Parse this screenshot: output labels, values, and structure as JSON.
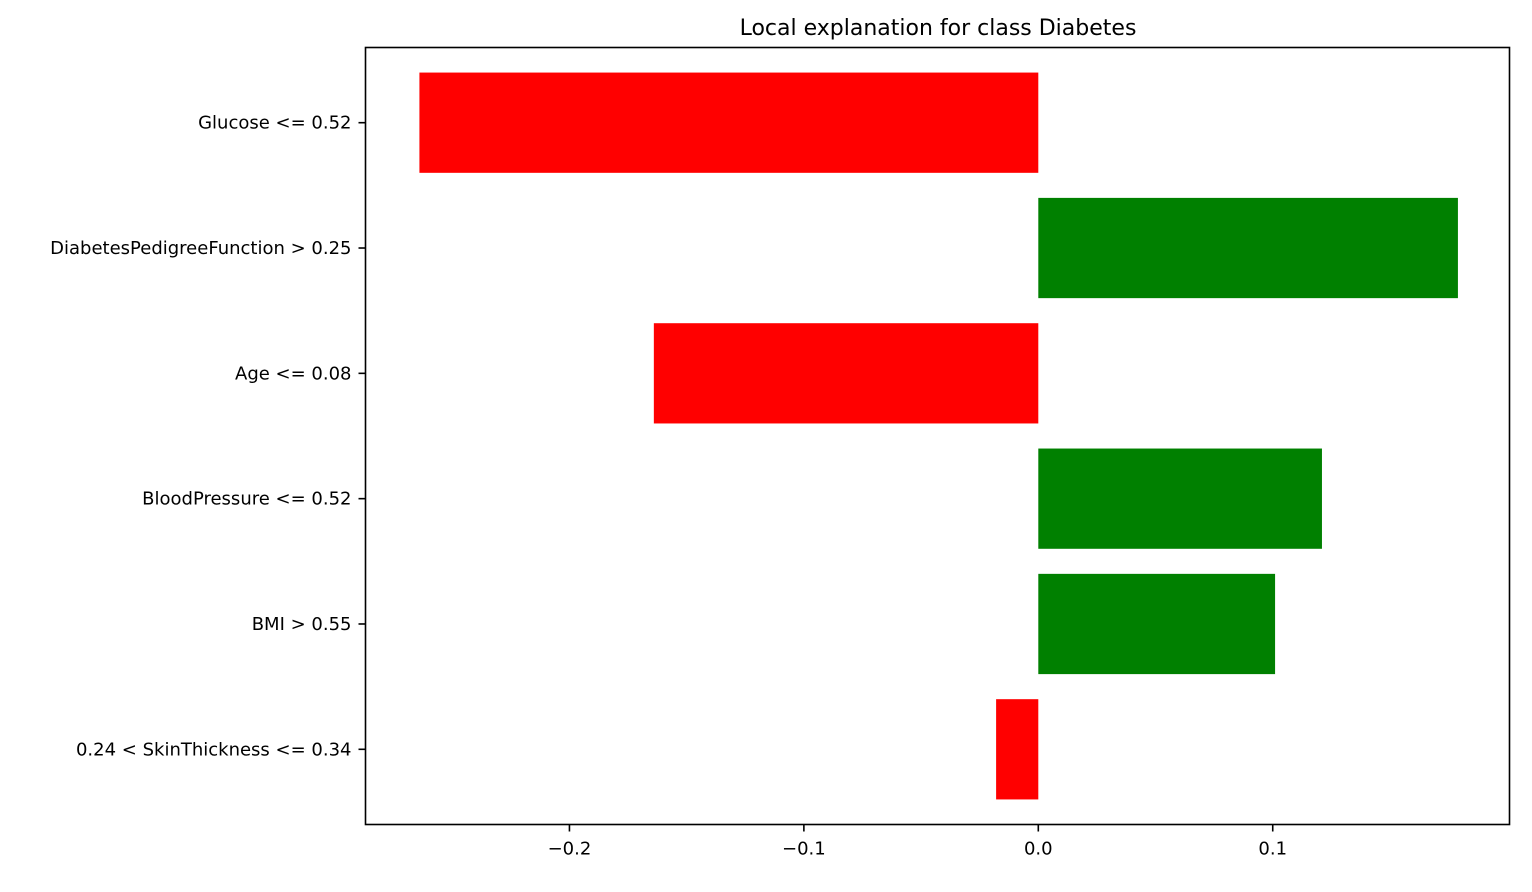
{
  "chart_data": {
    "type": "bar",
    "orientation": "horizontal",
    "title": "Local explanation for class Diabetes",
    "xlabel": "",
    "ylabel": "",
    "categories": [
      "Glucose <= 0.52",
      "DiabetesPedigreeFunction > 0.25",
      "Age <= 0.08",
      "BloodPressure <= 0.52",
      "BMI > 0.55",
      "0.24 < SkinThickness <= 0.34"
    ],
    "values": [
      -0.264,
      0.179,
      -0.164,
      0.121,
      0.101,
      -0.018
    ],
    "xlim": [
      -0.287,
      0.201
    ],
    "xticks": [
      -0.2,
      -0.1,
      0.0,
      0.1
    ],
    "xtick_labels": [
      "−0.2",
      "−0.1",
      "0.0",
      "0.1"
    ],
    "grid": false,
    "legend": "none",
    "colors": {
      "positive": "#008000",
      "negative": "#ff0000",
      "axes": "#000000",
      "background": "#ffffff"
    }
  }
}
